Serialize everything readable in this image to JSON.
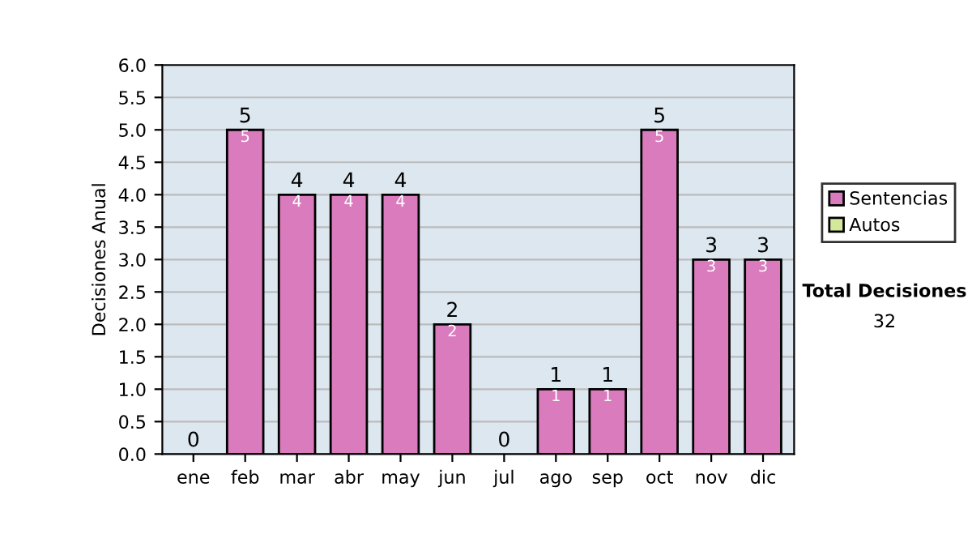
{
  "chart_data": {
    "type": "bar",
    "ylabel": "Decisiones Anual",
    "categories": [
      "ene",
      "feb",
      "mar",
      "abr",
      "may",
      "jun",
      "jul",
      "ago",
      "sep",
      "oct",
      "nov",
      "dic"
    ],
    "stacked": true,
    "series": [
      {
        "name": "Sentencias",
        "color": "#d97bbd",
        "values": [
          0,
          5,
          4,
          4,
          4,
          2,
          0,
          1,
          1,
          5,
          3,
          3
        ],
        "value_labels": [
          null,
          "5",
          "4",
          "4",
          "4",
          "2",
          null,
          "1",
          "1",
          "5",
          "3",
          "3"
        ]
      },
      {
        "name": "Autos",
        "color": "#d4e89a",
        "values": [
          0,
          0,
          0,
          0,
          0,
          0,
          0,
          0,
          0,
          0,
          0,
          0
        ]
      }
    ],
    "totals": [
      "0",
      "5",
      "4",
      "4",
      "4",
      "2",
      "0",
      "1",
      "1",
      "5",
      "3",
      "3"
    ],
    "ylim": [
      0,
      6
    ],
    "yticks": [
      "0.0",
      "0.5",
      "1.0",
      "1.5",
      "2.0",
      "2.5",
      "3.0",
      "3.5",
      "4.0",
      "4.5",
      "5.0",
      "5.5",
      "6.0"
    ],
    "grid": "y",
    "legend": "right",
    "annotations": [
      "Total Decisiones",
      "32"
    ]
  }
}
